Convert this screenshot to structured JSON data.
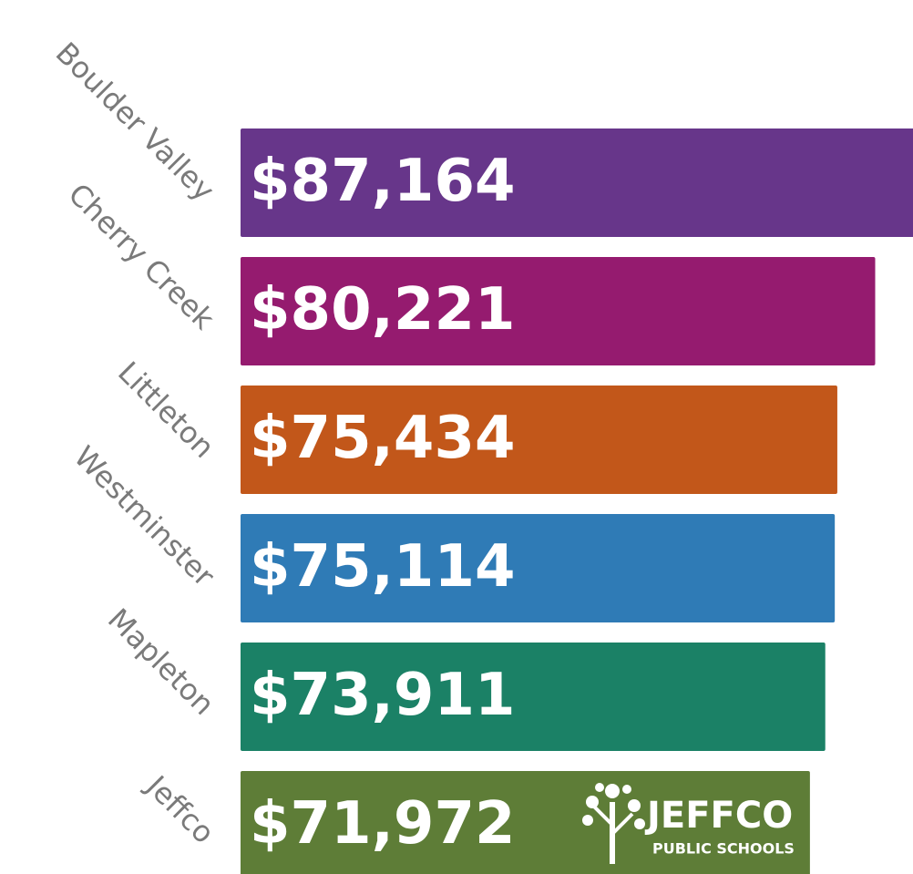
{
  "chart_data": {
    "type": "bar",
    "orientation": "horizontal",
    "categories": [
      "Boulder Valley",
      "Cherry Creek",
      "Littleton",
      "Westminster",
      "Mapleton",
      "Jeffco"
    ],
    "values": [
      87164,
      80221,
      75434,
      75114,
      73911,
      71972
    ],
    "value_labels": [
      "$87,164",
      "$80,221",
      "$75,434",
      "$75,114",
      "$73,911",
      "$71,972"
    ],
    "colors": [
      "#67368a",
      "#951b6f",
      "#c2571a",
      "#2f7bb6",
      "#1b8166",
      "#5e7d37"
    ],
    "xlim": [
      0,
      85000
    ]
  },
  "logo": {
    "title": "JEFFCO",
    "subtitle": "PUBLIC SCHOOLS"
  }
}
